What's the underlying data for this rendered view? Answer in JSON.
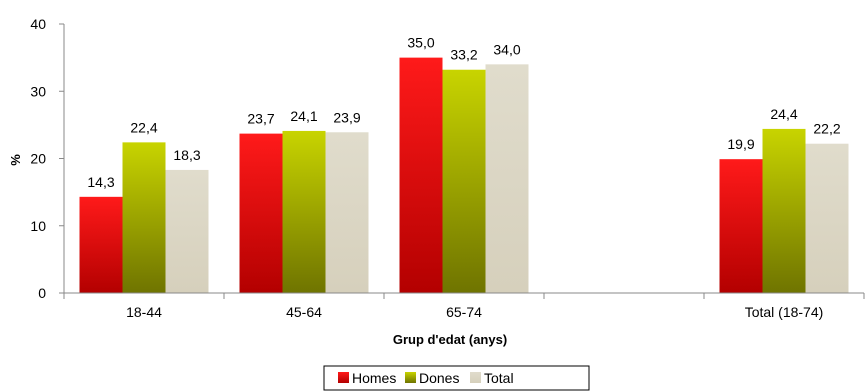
{
  "chart_data": {
    "type": "bar",
    "categories": [
      "18-44",
      "45-64",
      "65-74",
      "",
      "Total (18-74)"
    ],
    "series": [
      {
        "name": "Homes",
        "values": [
          14.3,
          23.7,
          35.0,
          null,
          19.9
        ],
        "labels": [
          "14,3",
          "23,7",
          "35,0",
          "",
          "19,9"
        ]
      },
      {
        "name": "Dones",
        "values": [
          22.4,
          24.1,
          33.2,
          null,
          24.4
        ],
        "labels": [
          "22,4",
          "24,1",
          "33,2",
          "",
          "24,4"
        ]
      },
      {
        "name": "Total",
        "values": [
          18.3,
          23.9,
          34.0,
          null,
          22.2
        ],
        "labels": [
          "18,3",
          "23,9",
          "34,0",
          "",
          "22,2"
        ]
      }
    ],
    "colors": {
      "Homes": [
        "#ff1a1a",
        "#b30000"
      ],
      "Dones": [
        "#c8d400",
        "#6f7400"
      ],
      "Total": [
        "#e0dccc",
        "#d6d0bc"
      ]
    },
    "xlabel": "Grup d'edat (anys)",
    "ylabel": "%",
    "ylim": [
      0,
      40
    ],
    "yticks": [
      "0",
      "10",
      "20",
      "30",
      "40"
    ],
    "ytick_values": [
      0,
      10,
      20,
      30,
      40
    ],
    "grid": false,
    "legend_position": "bottom"
  }
}
